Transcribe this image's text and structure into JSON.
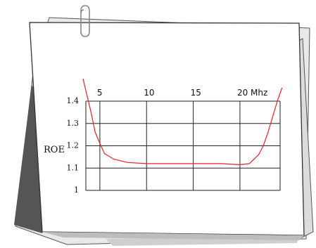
{
  "chart_data": {
    "type": "line",
    "title": "",
    "xlabel": "",
    "ylabel": "ROE",
    "x_tick_labels": [
      {
        "value": 5,
        "label": "5"
      },
      {
        "value": 10,
        "label": "10"
      },
      {
        "value": 15,
        "label": "15"
      },
      {
        "value": 20,
        "label": "20 Mhz"
      }
    ],
    "y_tick_labels": [
      {
        "value": 1.0,
        "label": "1"
      },
      {
        "value": 1.1,
        "label": "1.1"
      },
      {
        "value": 1.2,
        "label": "1.2"
      },
      {
        "value": 1.3,
        "label": "1.3"
      },
      {
        "value": 1.4,
        "label": "1.4"
      }
    ],
    "xlim": [
      3.5,
      24.3
    ],
    "ylim": [
      1.0,
      1.4
    ],
    "grid": true,
    "series": [
      {
        "color": "#e8202a",
        "x": [
          3.2,
          4.0,
          4.5,
          5.0,
          5.5,
          6.5,
          8.0,
          10.0,
          12.0,
          15.0,
          18.0,
          20.0,
          21.0,
          22.0,
          22.5,
          23.0,
          23.5,
          24.0,
          24.5
        ],
        "y": [
          1.5,
          1.36,
          1.26,
          1.21,
          1.165,
          1.14,
          1.125,
          1.12,
          1.12,
          1.12,
          1.12,
          1.115,
          1.12,
          1.16,
          1.2,
          1.26,
          1.33,
          1.4,
          1.46
        ]
      }
    ]
  },
  "colors": {
    "paper": "#ffffff",
    "paper_back": "#eeeeee",
    "paper_edge": "#444444",
    "grid": "#222222",
    "line": "#e8202a"
  },
  "icons": [
    "paperclip-icon"
  ]
}
